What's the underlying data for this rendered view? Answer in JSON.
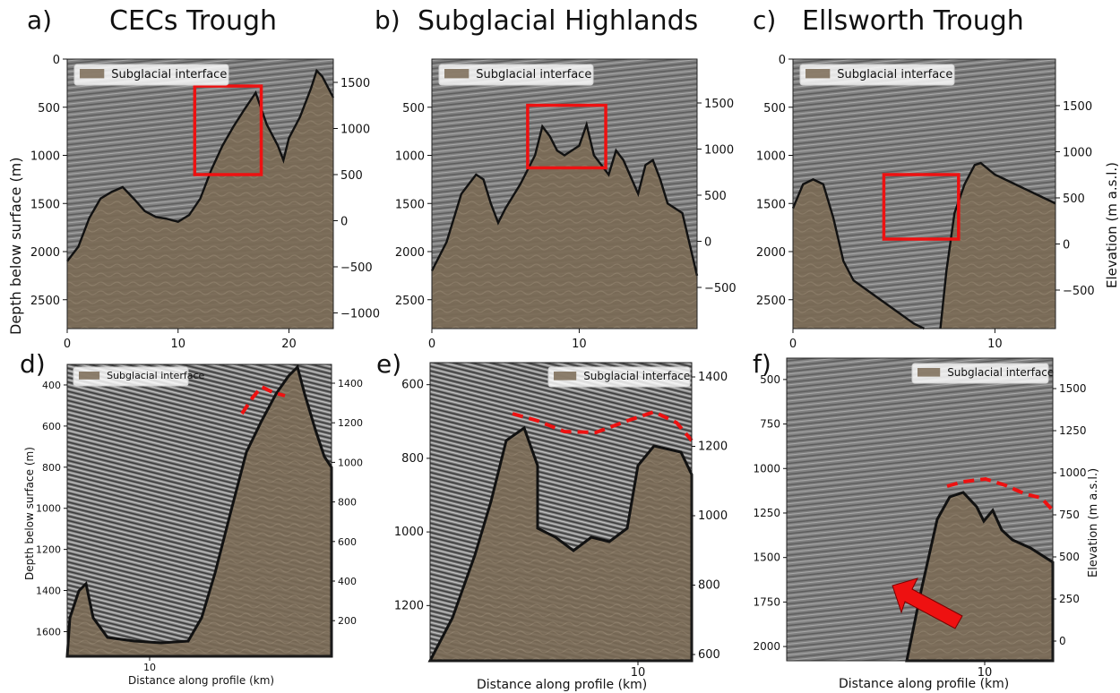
{
  "titles": {
    "a": {
      "letter": "a)",
      "text": "CECs Trough"
    },
    "b": {
      "letter": "b)",
      "text": "Subglacial Highlands"
    },
    "c": {
      "letter": "c)",
      "text": "Ellsworth Trough"
    },
    "d": {
      "letter": "d)"
    },
    "e": {
      "letter": "e)"
    },
    "f": {
      "letter": "f)"
    }
  },
  "labels": {
    "depth_top": "Depth below surface (m)",
    "elev_top": "Elevation (m a.s.l.)",
    "depth_d": "Depth below surface (m)",
    "elev_f": "Elevation (m a.s.l.)",
    "dist_d": "Distance along profile (km)",
    "dist_e": "Distance along profile (km)",
    "dist_f": "Distance along profile (km)"
  },
  "colors": {
    "radar_gray": "#7f7f7f",
    "bed_fill": "#7a6a55",
    "highlight_red": "#ee1111"
  },
  "chart_data": [
    {
      "panel": "a",
      "type": "area",
      "legend": "Subglacial interface",
      "xlim": [
        0,
        24
      ],
      "ylim_depth": [
        0,
        2800
      ],
      "x_ticks": [
        "0",
        "10",
        "20"
      ],
      "y_left_ticks": [
        "0",
        "500",
        "1000",
        "1500",
        "2000",
        "2500"
      ],
      "y_right_ticks": [
        "1500",
        "1000",
        "500",
        "0",
        "−500",
        "−1000"
      ],
      "bed_x": [
        0,
        1,
        2,
        3,
        4,
        5,
        6,
        7,
        8,
        9,
        10,
        11,
        12,
        13,
        14,
        15,
        16,
        17,
        18,
        19,
        19.5,
        20,
        21,
        22,
        22.5,
        23,
        24
      ],
      "bed_depth": [
        2100,
        1950,
        1650,
        1450,
        1380,
        1330,
        1450,
        1580,
        1640,
        1660,
        1690,
        1620,
        1450,
        1150,
        900,
        700,
        520,
        350,
        680,
        900,
        1050,
        820,
        600,
        300,
        120,
        180,
        400
      ],
      "highlight_box": {
        "x": [
          11.5,
          17.5
        ],
        "depth": [
          280,
          1200
        ]
      }
    },
    {
      "panel": "b",
      "type": "area",
      "legend": "Subglacial interface",
      "xlim": [
        0,
        18
      ],
      "ylim_depth": [
        0,
        2800
      ],
      "x_ticks": [
        "0",
        "10"
      ],
      "y_left_ticks": [
        "500",
        "1000",
        "1500",
        "2000",
        "2500"
      ],
      "y_right_ticks": [
        "1500",
        "1000",
        "500",
        "0",
        "−500"
      ],
      "bed_x": [
        0,
        1,
        2,
        3,
        3.5,
        4,
        4.5,
        5,
        6,
        7,
        7.5,
        8,
        8.5,
        9,
        10,
        10.5,
        11,
        12,
        12.5,
        13,
        14,
        14.5,
        15,
        15.5,
        16,
        17,
        18
      ],
      "bed_depth": [
        2200,
        1900,
        1400,
        1200,
        1250,
        1500,
        1700,
        1550,
        1300,
        1000,
        700,
        800,
        950,
        1000,
        900,
        680,
        1000,
        1200,
        950,
        1050,
        1400,
        1100,
        1050,
        1250,
        1500,
        1600,
        2250
      ],
      "highlight_box": {
        "x": [
          6.5,
          11.8
        ],
        "depth": [
          480,
          1130
        ]
      }
    },
    {
      "panel": "c",
      "type": "area",
      "legend": "Subglacial interface",
      "xlim": [
        0,
        13
      ],
      "ylim_depth": [
        0,
        2800
      ],
      "x_ticks": [
        "0",
        "10"
      ],
      "y_left_ticks": [
        "0",
        "500",
        "1000",
        "1500",
        "2000",
        "2500"
      ],
      "y_right_ticks": [
        "1500",
        "1000",
        "500",
        "0",
        "−500"
      ],
      "bed_left_x": [
        0,
        0.5,
        1,
        1.5,
        2,
        2.5,
        3,
        4,
        5,
        6,
        6.5
      ],
      "bed_left_depth": [
        1550,
        1300,
        1250,
        1300,
        1650,
        2100,
        2300,
        2450,
        2600,
        2750,
        2800
      ],
      "bed_right_x": [
        7.3,
        7.6,
        8,
        8.5,
        9,
        9.3,
        10,
        11,
        12,
        13
      ],
      "bed_right_depth": [
        2800,
        2200,
        1600,
        1300,
        1100,
        1080,
        1200,
        1300,
        1400,
        1500
      ],
      "highlight_box": {
        "x": [
          4.5,
          8.2
        ],
        "depth": [
          1200,
          1870
        ]
      }
    },
    {
      "panel": "d",
      "type": "area",
      "legend": "Subglacial interface",
      "ylim_depth": [
        300,
        1720
      ],
      "x_ticks": [
        "10"
      ],
      "y_left_ticks": [
        "400",
        "600",
        "800",
        "1000",
        "1200",
        "1400",
        "1600"
      ],
      "y_right_ticks": [
        "1400",
        "1200",
        "1000",
        "800",
        "600",
        "400",
        "200"
      ],
      "interpreted_horizon": "dashed red"
    },
    {
      "panel": "e",
      "type": "area",
      "legend": "Subglacial interface",
      "ylim_depth": [
        540,
        1350
      ],
      "x_ticks": [
        "10"
      ],
      "y_left_ticks": [
        "600",
        "800",
        "1000",
        "1200"
      ],
      "y_right_ticks": [
        "1400",
        "1200",
        "1000",
        "800",
        "600"
      ],
      "interpreted_horizon": "dashed red"
    },
    {
      "panel": "f",
      "type": "area",
      "legend": "Subglacial interface",
      "ylim_depth": [
        380,
        2080
      ],
      "x_ticks": [
        "10"
      ],
      "y_left_ticks": [
        "500",
        "750",
        "1000",
        "1250",
        "1500",
        "1750",
        "2000"
      ],
      "y_right_ticks": [
        "1500",
        "1250",
        "1000",
        "750",
        "500",
        "250",
        "0"
      ],
      "interpreted_horizon": "dashed red",
      "annotation_arrow": "red"
    }
  ]
}
